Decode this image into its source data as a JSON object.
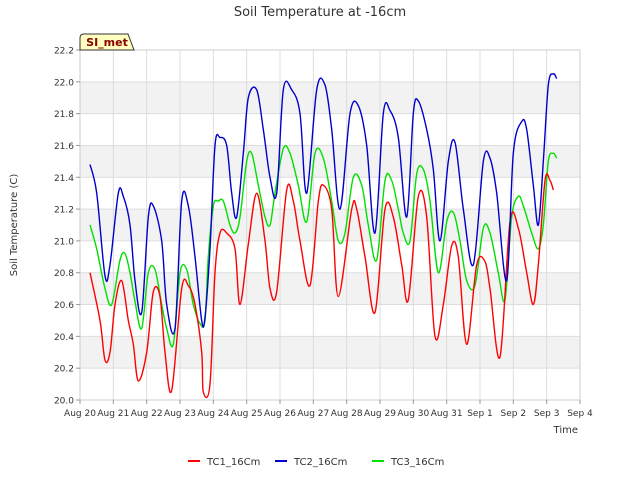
{
  "chart_data": {
    "type": "line",
    "title": "Soil Temperature at -16cm",
    "xlabel": "Time",
    "ylabel": "Soil Temperature (C)",
    "station_badge": "SI_met",
    "xlim": [
      0,
      15
    ],
    "ylim": [
      20.0,
      22.2
    ],
    "x_ticks": [
      {
        "x": 0,
        "label": "Aug 20"
      },
      {
        "x": 1,
        "label": "Aug 21"
      },
      {
        "x": 2,
        "label": "Aug 22"
      },
      {
        "x": 3,
        "label": "Aug 23"
      },
      {
        "x": 4,
        "label": "Aug 24"
      },
      {
        "x": 5,
        "label": "Aug 25"
      },
      {
        "x": 6,
        "label": "Aug 26"
      },
      {
        "x": 7,
        "label": "Aug 27"
      },
      {
        "x": 8,
        "label": "Aug 28"
      },
      {
        "x": 9,
        "label": "Aug 29"
      },
      {
        "x": 10,
        "label": "Aug 30"
      },
      {
        "x": 11,
        "label": "Aug 31"
      },
      {
        "x": 12,
        "label": "Sep 1"
      },
      {
        "x": 13,
        "label": "Sep 2"
      },
      {
        "x": 14,
        "label": "Sep 3"
      },
      {
        "x": 15,
        "label": "Sep 4"
      }
    ],
    "y_ticks": [
      "20.0",
      "20.2",
      "20.4",
      "20.6",
      "20.8",
      "21.0",
      "21.2",
      "21.4",
      "21.6",
      "21.8",
      "22.0",
      "22.2"
    ],
    "grid": true,
    "legend_position": "bottom",
    "series": [
      {
        "name": "TC1_16Cm",
        "color": "#ff0000",
        "x": [
          0.3,
          0.6,
          0.75,
          0.9,
          1.05,
          1.25,
          1.45,
          1.6,
          1.75,
          2.0,
          2.2,
          2.4,
          2.55,
          2.75,
          3.05,
          3.25,
          3.45,
          3.65,
          3.7,
          3.9,
          4.05,
          4.2,
          4.4,
          4.65,
          4.8,
          5.05,
          5.3,
          5.55,
          5.7,
          5.9,
          6.2,
          6.4,
          6.6,
          6.9,
          7.15,
          7.3,
          7.55,
          7.75,
          8.15,
          8.3,
          8.55,
          8.85,
          9.15,
          9.4,
          9.65,
          9.85,
          10.15,
          10.4,
          10.65,
          10.9,
          11.15,
          11.35,
          11.6,
          11.9,
          12.15,
          12.3,
          12.6,
          12.9,
          13.15,
          13.4,
          13.6,
          13.75,
          13.95,
          14.1,
          14.2
        ],
        "values": [
          20.8,
          20.5,
          20.25,
          20.3,
          20.6,
          20.75,
          20.5,
          20.35,
          20.12,
          20.3,
          20.68,
          20.65,
          20.3,
          20.06,
          20.7,
          20.72,
          20.6,
          20.3,
          20.05,
          20.1,
          20.8,
          21.05,
          21.05,
          20.95,
          20.6,
          20.98,
          21.3,
          21.0,
          20.7,
          20.68,
          21.32,
          21.25,
          21.0,
          20.72,
          21.25,
          21.35,
          21.2,
          20.65,
          21.2,
          21.2,
          20.9,
          20.55,
          21.2,
          21.15,
          20.85,
          20.63,
          21.28,
          21.15,
          20.4,
          20.6,
          20.97,
          20.9,
          20.35,
          20.85,
          20.87,
          20.7,
          20.27,
          21.12,
          21.08,
          20.8,
          20.6,
          20.85,
          21.38,
          21.38,
          21.32
        ]
      },
      {
        "name": "TC2_16Cm",
        "color": "#0000cc",
        "x": [
          0.3,
          0.5,
          0.75,
          0.9,
          1.15,
          1.3,
          1.5,
          1.65,
          1.85,
          2.05,
          2.2,
          2.45,
          2.6,
          2.85,
          3.05,
          3.25,
          3.45,
          3.65,
          3.75,
          3.9,
          4.05,
          4.2,
          4.4,
          4.55,
          4.7,
          4.9,
          5.05,
          5.3,
          5.5,
          5.7,
          5.9,
          6.1,
          6.35,
          6.6,
          6.8,
          7.1,
          7.35,
          7.55,
          7.8,
          8.1,
          8.35,
          8.6,
          8.85,
          9.1,
          9.3,
          9.55,
          9.8,
          10.0,
          10.15,
          10.4,
          10.6,
          10.8,
          11.05,
          11.25,
          11.5,
          11.8,
          12.1,
          12.3,
          12.5,
          12.8,
          13.0,
          13.25,
          13.4,
          13.6,
          13.75,
          13.9,
          14.05,
          14.2,
          14.3
        ],
        "values": [
          21.48,
          21.3,
          20.78,
          20.85,
          21.3,
          21.28,
          21.1,
          20.75,
          20.55,
          21.15,
          21.22,
          21.0,
          20.6,
          20.45,
          21.25,
          21.22,
          20.9,
          20.5,
          20.52,
          20.95,
          21.6,
          21.65,
          21.6,
          21.3,
          21.15,
          21.55,
          21.9,
          21.95,
          21.7,
          21.4,
          21.3,
          21.95,
          21.95,
          21.8,
          21.3,
          21.95,
          21.98,
          21.7,
          21.2,
          21.8,
          21.85,
          21.6,
          21.05,
          21.8,
          21.82,
          21.65,
          21.15,
          21.8,
          21.88,
          21.7,
          21.45,
          21.0,
          21.5,
          21.62,
          21.2,
          20.85,
          21.5,
          21.52,
          21.3,
          20.75,
          21.55,
          21.75,
          21.7,
          21.35,
          21.1,
          21.5,
          21.98,
          22.05,
          22.02
        ]
      },
      {
        "name": "TC3_16Cm",
        "color": "#00e000",
        "x": [
          0.3,
          0.5,
          0.75,
          0.95,
          1.2,
          1.35,
          1.5,
          1.65,
          1.85,
          2.05,
          2.25,
          2.45,
          2.6,
          2.8,
          3.0,
          3.2,
          3.4,
          3.6,
          3.75,
          3.85,
          4.0,
          4.15,
          4.3,
          4.5,
          4.65,
          4.8,
          5.0,
          5.15,
          5.35,
          5.55,
          5.7,
          5.85,
          6.1,
          6.3,
          6.55,
          6.8,
          7.05,
          7.3,
          7.55,
          7.75,
          7.95,
          8.2,
          8.45,
          8.65,
          8.9,
          9.15,
          9.35,
          9.55,
          9.7,
          9.9,
          10.1,
          10.3,
          10.5,
          10.75,
          11.0,
          11.2,
          11.4,
          11.6,
          11.85,
          12.1,
          12.3,
          12.55,
          12.75,
          12.95,
          13.15,
          13.3,
          13.55,
          13.75,
          13.9,
          14.05,
          14.2,
          14.3
        ],
        "values": [
          21.1,
          20.95,
          20.7,
          20.6,
          20.88,
          20.92,
          20.8,
          20.62,
          20.45,
          20.8,
          20.82,
          20.6,
          20.45,
          20.35,
          20.8,
          20.82,
          20.6,
          20.48,
          20.5,
          20.9,
          21.22,
          21.25,
          21.25,
          21.1,
          21.05,
          21.15,
          21.5,
          21.55,
          21.35,
          21.15,
          21.1,
          21.3,
          21.58,
          21.55,
          21.35,
          21.12,
          21.55,
          21.52,
          21.25,
          21.0,
          21.05,
          21.4,
          21.35,
          21.1,
          20.88,
          21.38,
          21.38,
          21.2,
          21.05,
          21.0,
          21.42,
          21.45,
          21.25,
          20.8,
          21.12,
          21.18,
          21.0,
          20.75,
          20.72,
          21.08,
          21.05,
          20.8,
          20.63,
          21.15,
          21.28,
          21.22,
          21.05,
          20.95,
          21.1,
          21.5,
          21.55,
          21.52
        ]
      }
    ]
  }
}
